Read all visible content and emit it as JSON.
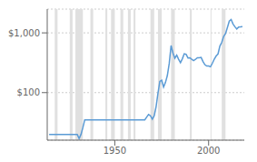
{
  "chart_data": {
    "type": "line",
    "x": [
      1915,
      1916,
      1917,
      1918,
      1919,
      1920,
      1921,
      1922,
      1923,
      1924,
      1925,
      1926,
      1927,
      1928,
      1929,
      1930,
      1931,
      1932,
      1933,
      1934,
      1935,
      1936,
      1937,
      1938,
      1939,
      1940,
      1941,
      1942,
      1943,
      1944,
      1945,
      1946,
      1947,
      1948,
      1949,
      1950,
      1951,
      1952,
      1953,
      1954,
      1955,
      1956,
      1957,
      1958,
      1959,
      1960,
      1961,
      1962,
      1963,
      1964,
      1965,
      1966,
      1967,
      1968,
      1969,
      1970,
      1971,
      1972,
      1973,
      1974,
      1975,
      1976,
      1977,
      1978,
      1979,
      1980,
      1981,
      1982,
      1983,
      1984,
      1985,
      1986,
      1987,
      1988,
      1989,
      1990,
      1991,
      1992,
      1993,
      1994,
      1995,
      1996,
      1997,
      1998,
      1999,
      2000,
      2001,
      2002,
      2003,
      2004,
      2005,
      2006,
      2007,
      2008,
      2009,
      2010,
      2011,
      2012,
      2013,
      2014,
      2015,
      2016,
      2017,
      2018
    ],
    "values": [
      20,
      20,
      20,
      20,
      20,
      20,
      20,
      20,
      20,
      20,
      20,
      20,
      20,
      20,
      20,
      20,
      17,
      20,
      26,
      35,
      35,
      35,
      35,
      35,
      35,
      35,
      35,
      35,
      35,
      35,
      35,
      35,
      35,
      35,
      35,
      35,
      35,
      35,
      35,
      35,
      35,
      35,
      35,
      35,
      35,
      35,
      35,
      35,
      35,
      35,
      35,
      35,
      39,
      43,
      41,
      36,
      41,
      58,
      97,
      154,
      161,
      124,
      148,
      193,
      306,
      615,
      460,
      376,
      424,
      361,
      317,
      368,
      447,
      437,
      381,
      383,
      362,
      344,
      360,
      384,
      384,
      388,
      331,
      294,
      279,
      279,
      271,
      310,
      363,
      410,
      444,
      603,
      695,
      872,
      972,
      1225,
      1571,
      1669,
      1411,
      1266,
      1160,
      1251,
      1257,
      1268
    ],
    "color": "#5b9bd5",
    "log": "y",
    "xlim": [
      1914,
      2019
    ],
    "ylim": [
      16,
      2500
    ],
    "xticks": [
      1950,
      2000
    ],
    "yticks": [
      {
        "value": 1000,
        "label": "$1,000"
      },
      {
        "value": 100,
        "label": "$100"
      }
    ],
    "grid": true,
    "bands": {
      "color": "#e0e0e0",
      "ranges": [
        [
          1918,
          1919.5
        ],
        [
          1926,
          1927.5
        ],
        [
          1929,
          1933
        ],
        [
          1937,
          1938.5
        ],
        [
          1945,
          1946
        ],
        [
          1948,
          1950
        ],
        [
          1953,
          1954.5
        ],
        [
          1957,
          1958.5
        ],
        [
          1960,
          1961
        ],
        [
          1969,
          1971
        ],
        [
          1973,
          1975
        ],
        [
          1980,
          1982
        ],
        [
          1990,
          1991
        ],
        [
          2001,
          2001.5
        ],
        [
          2007,
          2009
        ]
      ]
    }
  }
}
